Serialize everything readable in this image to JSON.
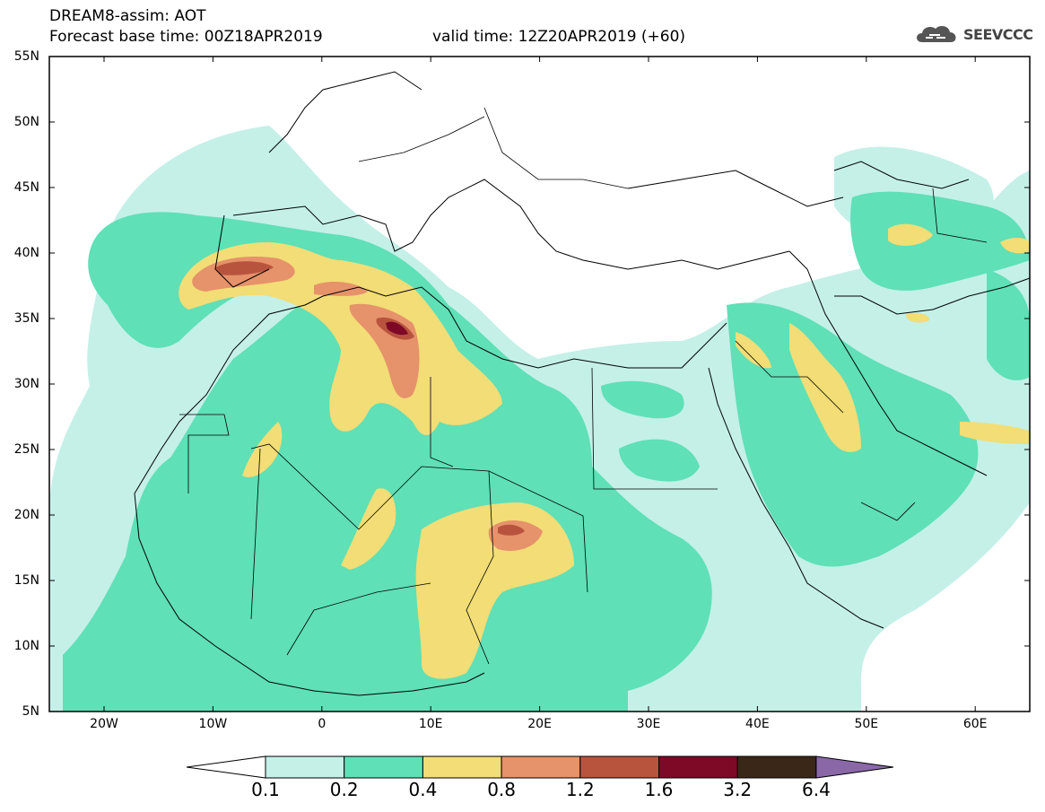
{
  "header": {
    "line1": "DREAM8-assim: AOT",
    "line2": "Forecast base time: 00Z18APR2019",
    "valid": "valid time: 12Z20APR2019 (+60)",
    "logo_text": "SEEVCCC"
  },
  "axes": {
    "lat_labels": [
      "55N",
      "50N",
      "45N",
      "40N",
      "35N",
      "30N",
      "25N",
      "20N",
      "15N",
      "10N",
      "5N"
    ],
    "lon_labels": [
      "20W",
      "10W",
      "0",
      "10E",
      "20E",
      "30E",
      "40E",
      "50E",
      "60E"
    ]
  },
  "colorbar": {
    "levels": [
      "0.1",
      "0.2",
      "0.4",
      "0.8",
      "1.2",
      "1.6",
      "3.2",
      "6.4"
    ],
    "colors": [
      "#ffffff",
      "#c4f0e8",
      "#5fe0b6",
      "#f2dd76",
      "#e6926a",
      "#b8543e",
      "#7d0927",
      "#3b2718",
      "#8a68a8"
    ]
  },
  "colors": {
    "c1": "#c4f0e8",
    "c2": "#5fe0b6",
    "c3": "#f2dd76",
    "c4": "#e6926a",
    "c5": "#b8543e",
    "c6": "#7d0927"
  }
}
